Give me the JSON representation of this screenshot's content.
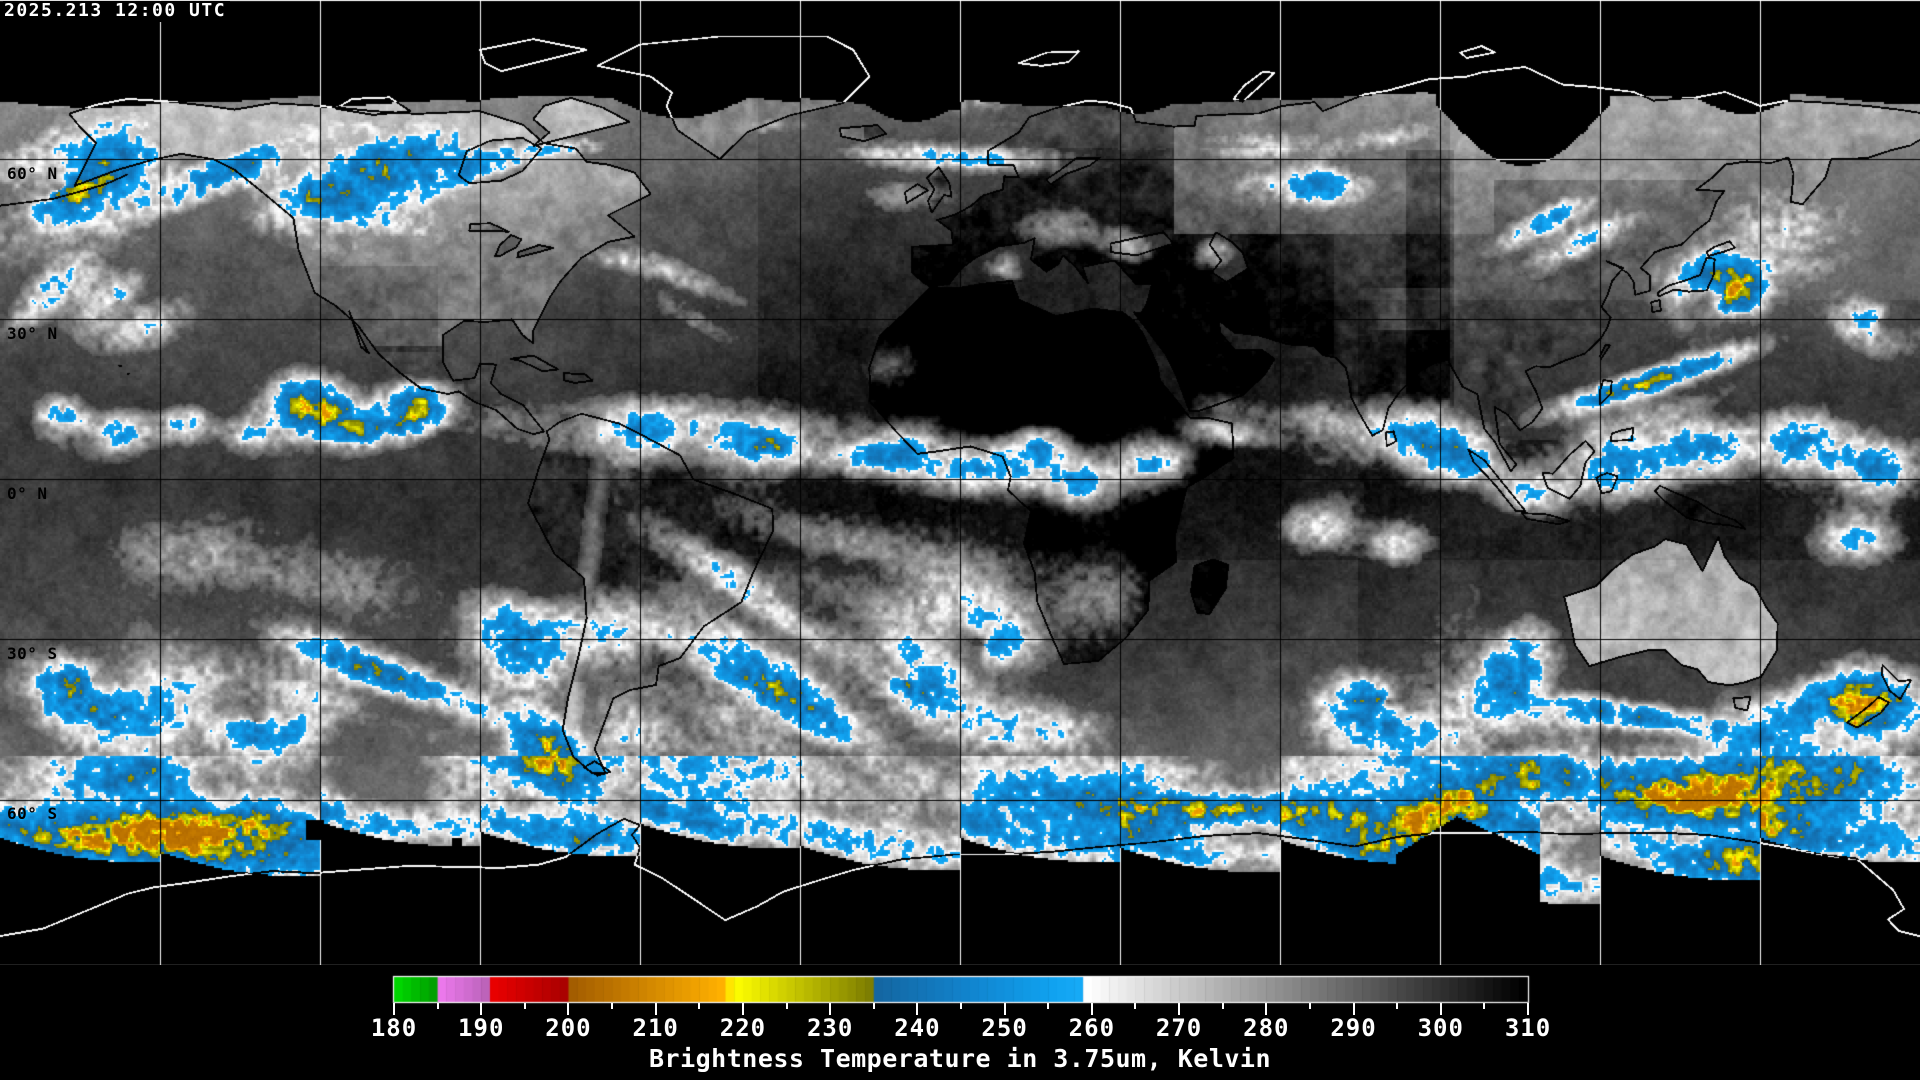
{
  "overlay": {
    "timestamp": "2025.213 12:00 UTC"
  },
  "map": {
    "type": "satellite-brightness-temperature-composite",
    "projection": "equirectangular",
    "latitude_labels": [
      "60° N",
      "30° N",
      "0° N",
      "30° S",
      "60° S"
    ],
    "grid": {
      "lon_interval_deg": 30,
      "lat_interval_deg": 30
    },
    "background_color": "#000000",
    "gridline_color_over_data": "#000000",
    "gridline_color_over_void": "#ffffff"
  },
  "colorbar": {
    "caption": "Brightness Temperature in 3.75um, Kelvin",
    "unit": "Kelvin",
    "min_kelvin": 180,
    "max_kelvin": 310,
    "major_ticks": [
      180,
      190,
      200,
      210,
      220,
      230,
      240,
      250,
      260,
      270,
      280,
      290,
      300,
      310
    ],
    "minor_tick_step": 5,
    "palette": [
      {
        "t": 180,
        "color": "#00e400"
      },
      {
        "t": 185,
        "color": "#00a000"
      },
      {
        "t": 185.01,
        "color": "#f47cf4"
      },
      {
        "t": 191,
        "color": "#bc64bc"
      },
      {
        "t": 191.01,
        "color": "#f00000"
      },
      {
        "t": 200,
        "color": "#aa0000"
      },
      {
        "t": 200.01,
        "color": "#9e5800"
      },
      {
        "t": 218,
        "color": "#ffb000"
      },
      {
        "t": 219.5,
        "color": "#ffff00"
      },
      {
        "t": 235,
        "color": "#7e7e00"
      },
      {
        "t": 235.01,
        "color": "#14639e"
      },
      {
        "t": 247,
        "color": "#1186d0"
      },
      {
        "t": 256,
        "color": "#10a2f0"
      },
      {
        "t": 259.99,
        "color": "#18acf8"
      },
      {
        "t": 260,
        "color": "#ffffff"
      },
      {
        "t": 310,
        "color": "#000000"
      }
    ]
  }
}
